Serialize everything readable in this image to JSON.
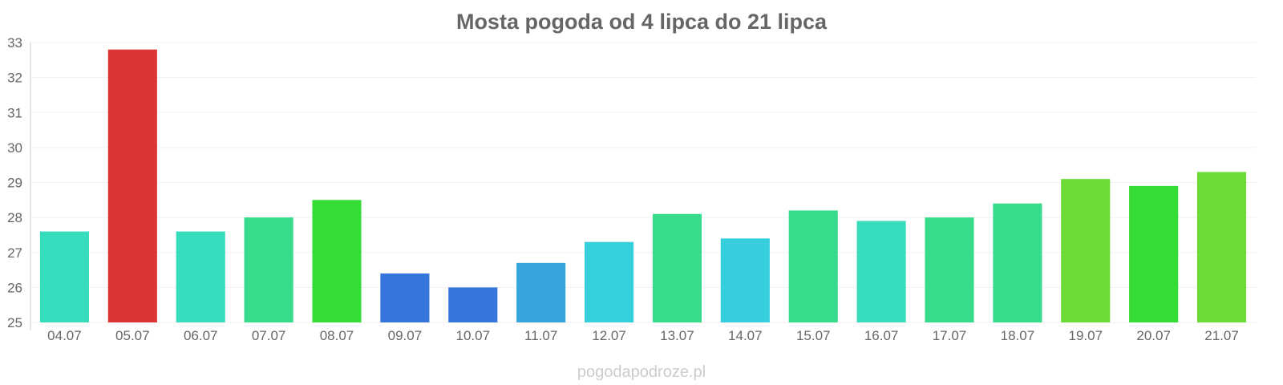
{
  "chart_data": {
    "type": "bar",
    "title": "Mosta pogoda od 4 lipca do 21 lipca",
    "xlabel": "",
    "ylabel": "",
    "ylim": [
      25,
      33
    ],
    "yticks": [
      25,
      26,
      27,
      28,
      29,
      30,
      31,
      32,
      33
    ],
    "grid": true,
    "legend": "none",
    "categories": [
      "04.07",
      "05.07",
      "06.07",
      "07.07",
      "08.07",
      "09.07",
      "10.07",
      "11.07",
      "12.07",
      "13.07",
      "14.07",
      "15.07",
      "16.07",
      "17.07",
      "18.07",
      "19.07",
      "20.07",
      "21.07"
    ],
    "values": [
      27.6,
      32.8,
      27.6,
      28.0,
      28.5,
      26.4,
      26.0,
      26.7,
      27.3,
      28.1,
      27.4,
      28.2,
      27.9,
      28.0,
      28.4,
      29.1,
      28.9,
      29.3
    ],
    "colors": [
      "#36dcbb",
      "#dc3535",
      "#36dcbb",
      "#36dc8c",
      "#36dc36",
      "#3675dc",
      "#3675dc",
      "#36a5dc",
      "#36d0dc",
      "#36dc8c",
      "#36cddc",
      "#36dc8c",
      "#36dcbb",
      "#36dc8c",
      "#36dc8c",
      "#6bdc36",
      "#36dc36",
      "#6bdc36"
    ]
  },
  "watermark": "pogodapodroze.pl"
}
